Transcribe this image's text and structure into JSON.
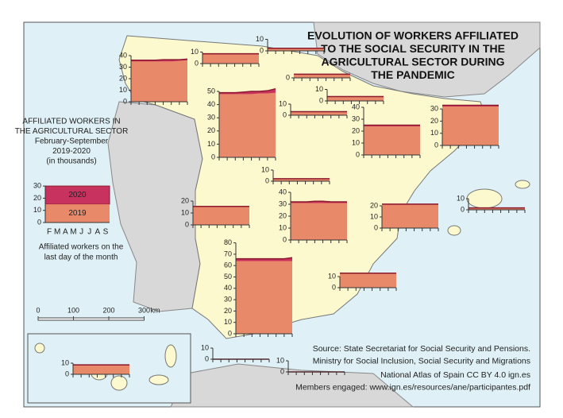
{
  "title": [
    "EVOLUTION OF WORKERS AFFILIATED",
    "TO THE SOCIAL SECURITY IN THE",
    "AGRICULTURAL SECTOR DURING",
    "THE PANDEMIC"
  ],
  "legend": {
    "heading": [
      "AFFILIATED WORKERS IN",
      "THE AGRICULTURAL SECTOR",
      "February-September",
      "2019-2020",
      "(in thousands)"
    ],
    "yticks": [
      0,
      10,
      20,
      30
    ],
    "months": [
      "F",
      "M",
      "A",
      "M",
      "J",
      "J",
      "A",
      "S"
    ],
    "series": [
      {
        "name": "2020",
        "color": "#c8325e",
        "value": 30
      },
      {
        "name": "2019",
        "color": "#e8896a",
        "value": 15
      }
    ],
    "note": [
      "Affiliated workers on the",
      "last day of the month"
    ]
  },
  "scale": {
    "ticks": [
      0,
      100,
      200,
      300
    ],
    "unit": "km"
  },
  "regions": [
    {
      "yticks": [
        0,
        10,
        20,
        30,
        40
      ],
      "values_2019": [
        35,
        35,
        35,
        35,
        35,
        35,
        35.5,
        36
      ],
      "values_2020": [
        36,
        36,
        36,
        36,
        36.5,
        36.5,
        36.5,
        37
      ]
    },
    {
      "yticks": [
        0,
        10
      ],
      "values_2019": [
        8,
        8,
        8,
        8,
        8,
        8,
        8,
        8
      ],
      "values_2020": [
        8.5,
        8.5,
        8.5,
        8.5,
        8.5,
        8.5,
        8.5,
        8.5
      ]
    },
    {
      "yticks": [
        0,
        10
      ],
      "values_2019": [
        2,
        2,
        2,
        2,
        2,
        2,
        2,
        2
      ],
      "values_2020": [
        2.2,
        2.2,
        2.2,
        2.2,
        2.2,
        2.2,
        2.2,
        2.2
      ]
    },
    {
      "yticks": [
        0
      ],
      "values_2019": [
        3,
        3,
        3,
        3,
        3,
        3,
        3,
        3
      ],
      "values_2020": [
        3.2,
        3.2,
        3.2,
        3.2,
        3.2,
        3.2,
        3.2,
        3.2
      ]
    },
    {
      "yticks": [
        0,
        10
      ],
      "values_2019": [
        3.5,
        3.5,
        3.5,
        3.5,
        3.5,
        3.5,
        3.5,
        3.5
      ],
      "values_2020": [
        3.8,
        3.8,
        3.8,
        3.8,
        3.8,
        3.8,
        3.8,
        3.8
      ]
    },
    {
      "yticks": [
        0,
        10
      ],
      "values_2019": [
        3,
        3,
        3,
        3,
        3,
        3,
        3,
        3
      ],
      "values_2020": [
        3.2,
        3.2,
        3.2,
        3.2,
        3.2,
        3.2,
        3.2,
        3.2
      ]
    },
    {
      "yticks": [
        0,
        10,
        20,
        30,
        40,
        50
      ],
      "values_2019": [
        48,
        48,
        48,
        48,
        48,
        48.5,
        48.5,
        49
      ],
      "values_2020": [
        49,
        49,
        49,
        49.5,
        50,
        50,
        50.5,
        52
      ]
    },
    {
      "yticks": [
        0,
        10,
        20,
        30,
        40
      ],
      "values_2019": [
        24,
        24,
        24,
        24,
        24,
        24,
        24,
        24
      ],
      "values_2020": [
        25,
        25,
        25,
        25,
        25,
        25,
        25,
        25
      ]
    },
    {
      "yticks": [
        0,
        10,
        20,
        30
      ],
      "values_2019": [
        32,
        32,
        32,
        32,
        32,
        32,
        32,
        32
      ],
      "values_2020": [
        33,
        33,
        33,
        33,
        33,
        33,
        33,
        33
      ]
    },
    {
      "yticks": [
        0,
        10
      ],
      "values_2019": [
        2,
        2,
        2,
        2,
        2,
        2,
        2,
        2
      ],
      "values_2020": [
        2.2,
        2.2,
        2.2,
        2.2,
        2.2,
        2.2,
        2.2,
        2.2
      ]
    },
    {
      "yticks": [
        0,
        10,
        20
      ],
      "values_2019": [
        15,
        15,
        15,
        15,
        15,
        15,
        15,
        15
      ],
      "values_2020": [
        15.5,
        15.5,
        15.5,
        15.5,
        15.5,
        15.5,
        15.5,
        15.5
      ]
    },
    {
      "yticks": [
        0,
        10,
        20,
        30,
        40
      ],
      "values_2019": [
        31,
        31,
        31,
        31,
        31,
        31,
        31,
        31
      ],
      "values_2020": [
        32,
        32,
        32,
        32.5,
        32.5,
        32,
        32,
        32
      ]
    },
    {
      "yticks": [
        0,
        10,
        20
      ],
      "values_2019": [
        21,
        21,
        21,
        21,
        21,
        21,
        21,
        21
      ],
      "values_2020": [
        21.5,
        21.5,
        21.5,
        21.5,
        21.5,
        21.5,
        21.5,
        21.5
      ]
    },
    {
      "yticks": [
        0,
        10
      ],
      "values_2019": [
        1.5,
        1.5,
        1.5,
        1.5,
        1.5,
        1.5,
        1.5,
        1.5
      ],
      "values_2020": [
        1.7,
        1.7,
        1.7,
        1.7,
        1.7,
        1.7,
        1.7,
        1.7
      ]
    },
    {
      "yticks": [
        0,
        10,
        20,
        30,
        40,
        50,
        60,
        70,
        80
      ],
      "values_2019": [
        64,
        64,
        64,
        64,
        64,
        64,
        64,
        64
      ],
      "values_2020": [
        66,
        66,
        66,
        66,
        66,
        66,
        66,
        67
      ]
    },
    {
      "yticks": [
        0,
        10
      ],
      "values_2019": [
        12.5,
        12.5,
        12.5,
        12.5,
        12.5,
        12.5,
        12.5,
        12.5
      ],
      "values_2020": [
        13,
        13,
        13,
        13,
        13,
        13,
        13,
        13
      ]
    },
    {
      "yticks": [
        0,
        10
      ],
      "values_2019": [
        8,
        8,
        8,
        8,
        8,
        8,
        8,
        8
      ],
      "values_2020": [
        8.5,
        8.5,
        8.5,
        8.5,
        8.5,
        8.5,
        8.5,
        8.5
      ]
    },
    {
      "yticks": [
        0,
        10
      ],
      "values_2019": [
        0,
        0,
        0,
        0,
        0,
        0,
        0,
        0
      ],
      "values_2020": [
        0,
        0,
        0,
        0,
        0,
        0,
        0,
        0
      ]
    },
    {
      "yticks": [
        0,
        10
      ],
      "values_2019": [
        0,
        0,
        0,
        0,
        0,
        0,
        0,
        0
      ],
      "values_2020": [
        0,
        0,
        0,
        0,
        0,
        0,
        0,
        0
      ]
    }
  ],
  "source": [
    "Source: State Secretariat for Social Security and Pensions.",
    "Ministry for Social Inclusion, Social Security and Migrations",
    "National Atlas of Spain CC BY 4.0 ign.es",
    "Members engaged: www.ign.es/resources/ane/participantes.pdf"
  ]
}
